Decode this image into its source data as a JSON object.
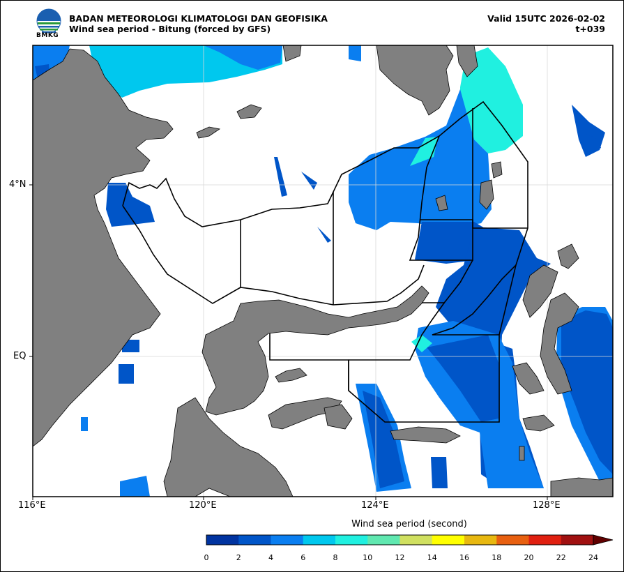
{
  "header": {
    "org": "BADAN METEOROLOGI KLIMATOLOGI DAN GEOFISIKA",
    "subtitle": "Wind sea period - Bitung (forced by GFS)",
    "valid": "Valid 15UTC 2026-02-02",
    "lead": "t+039",
    "logo_text": "BMKG"
  },
  "axes": {
    "lon_labels": [
      "116°E",
      "120°E",
      "124°E",
      "128°E"
    ],
    "lat_labels": [
      "4°N",
      "EQ"
    ]
  },
  "colorbar": {
    "title": "Wind sea period (second)",
    "ticks": [
      "0",
      "2",
      "4",
      "6",
      "8",
      "10",
      "12",
      "14",
      "16",
      "18",
      "20",
      "22",
      "24"
    ],
    "colors": [
      "#0033a0",
      "#0055c8",
      "#0a7ef0",
      "#00c8ee",
      "#20f0e0",
      "#60e8b0",
      "#d0e060",
      "#ffff00",
      "#e8b810",
      "#e86010",
      "#e02010",
      "#a01010",
      "#600000"
    ]
  },
  "colors": {
    "land": "#808080",
    "sea": "#ffffff",
    "grid": "#d8d8d8"
  }
}
